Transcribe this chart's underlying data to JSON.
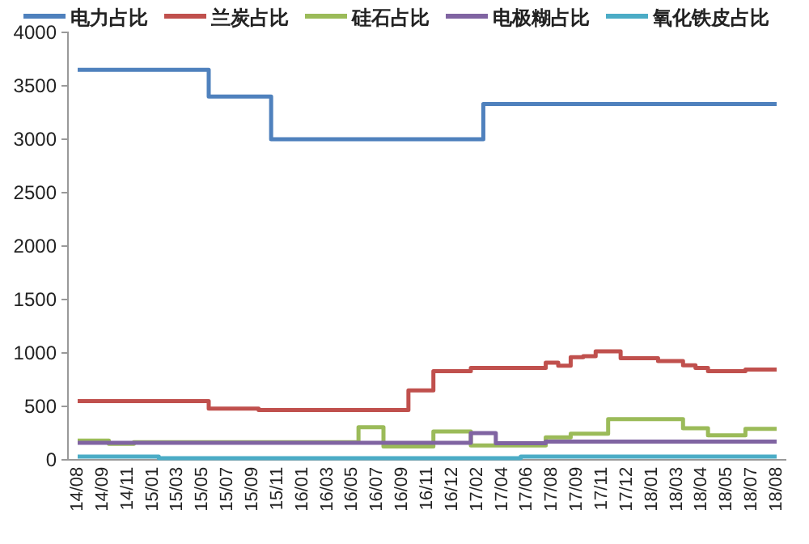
{
  "chart_data": {
    "type": "step",
    "legend": "top",
    "grid": false,
    "ylim": [
      0,
      4000
    ],
    "yticks": [
      0,
      500,
      1000,
      1500,
      2000,
      2500,
      3000,
      3500,
      4000
    ],
    "categories": [
      "14/08",
      null,
      "14/09",
      null,
      "14/11",
      null,
      "15/01",
      null,
      "15/03",
      null,
      "15/05",
      null,
      "15/07",
      null,
      "15/09",
      null,
      "15/11",
      null,
      "16/01",
      null,
      "16/03",
      null,
      "16/05",
      null,
      "16/07",
      null,
      "16/09",
      null,
      "16/11",
      null,
      "16/12",
      null,
      "17/02",
      null,
      "17/04",
      null,
      "17/06",
      null,
      "17/08",
      null,
      "17/09",
      null,
      "17/11",
      null,
      "17/12",
      null,
      "18/01",
      null,
      "18/03",
      null,
      "18/04",
      null,
      "18/05",
      null,
      "18/07",
      null,
      "18/08"
    ],
    "series": [
      {
        "name": "电力占比",
        "color": "#4f81bd",
        "values": [
          3650,
          3650,
          3650,
          3650,
          3650,
          3650,
          3650,
          3650,
          3650,
          3650,
          3650,
          3400,
          3400,
          3400,
          3400,
          3400,
          3000,
          3000,
          3000,
          3000,
          3000,
          3000,
          3000,
          3000,
          3000,
          3000,
          3000,
          3000,
          3000,
          3000,
          3000,
          3000,
          3000,
          3330,
          3330,
          3330,
          3330,
          3330,
          3330,
          3330,
          3330,
          3330,
          3330,
          3330,
          3330,
          3330,
          3330,
          3330,
          3330,
          3330,
          3330,
          3330,
          3330,
          3330,
          3330,
          3330,
          3330
        ]
      },
      {
        "name": "兰炭占比",
        "color": "#c0504d",
        "values": [
          550,
          550,
          550,
          550,
          550,
          550,
          550,
          550,
          550,
          550,
          550,
          480,
          480,
          480,
          480,
          465,
          465,
          465,
          465,
          465,
          465,
          465,
          465,
          465,
          465,
          465,
          465,
          650,
          650,
          830,
          830,
          830,
          860,
          860,
          860,
          860,
          860,
          860,
          910,
          880,
          960,
          970,
          1015,
          1015,
          950,
          950,
          950,
          925,
          925,
          885,
          860,
          830,
          830,
          830,
          845,
          845,
          845
        ]
      },
      {
        "name": "硅石占比",
        "color": "#9bbb59",
        "values": [
          180,
          180,
          180,
          150,
          150,
          165,
          165,
          165,
          165,
          165,
          165,
          165,
          165,
          165,
          165,
          165,
          165,
          165,
          165,
          165,
          165,
          165,
          165,
          305,
          305,
          125,
          125,
          125,
          125,
          265,
          265,
          265,
          135,
          135,
          135,
          135,
          135,
          135,
          210,
          210,
          245,
          245,
          245,
          380,
          380,
          380,
          380,
          380,
          380,
          295,
          295,
          230,
          230,
          230,
          290,
          290,
          290
        ]
      },
      {
        "name": "电极糊占比",
        "color": "#8064a2",
        "values": [
          160,
          160,
          160,
          160,
          160,
          160,
          160,
          160,
          160,
          160,
          160,
          160,
          160,
          160,
          160,
          160,
          160,
          160,
          160,
          160,
          160,
          160,
          160,
          160,
          160,
          160,
          160,
          160,
          160,
          160,
          160,
          160,
          250,
          250,
          155,
          155,
          155,
          155,
          170,
          170,
          170,
          170,
          170,
          170,
          170,
          170,
          170,
          170,
          170,
          170,
          170,
          170,
          170,
          170,
          170,
          170,
          170
        ]
      },
      {
        "name": "氧化铁皮占比",
        "color": "#4bacc6",
        "values": [
          30,
          30,
          30,
          30,
          30,
          30,
          30,
          15,
          15,
          15,
          15,
          15,
          15,
          15,
          15,
          15,
          15,
          15,
          15,
          15,
          15,
          15,
          15,
          15,
          15,
          15,
          15,
          15,
          15,
          15,
          15,
          15,
          15,
          15,
          15,
          15,
          30,
          30,
          30,
          30,
          30,
          30,
          30,
          30,
          30,
          30,
          30,
          30,
          30,
          30,
          30,
          30,
          30,
          30,
          30,
          30,
          30
        ]
      }
    ]
  }
}
